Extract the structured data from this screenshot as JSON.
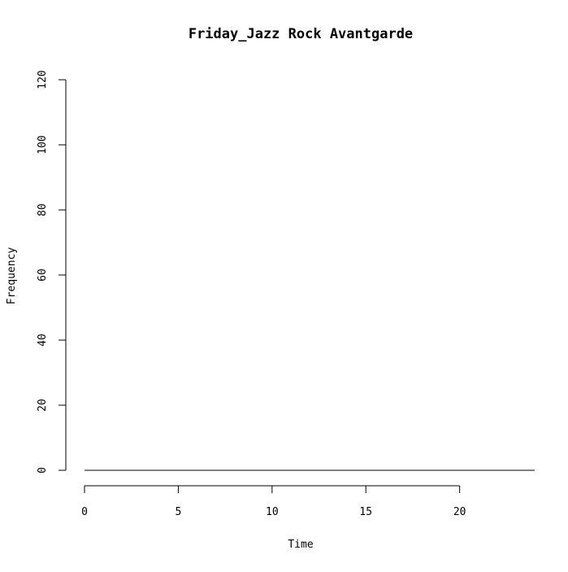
{
  "chart_data": {
    "type": "line",
    "title": "Friday_Jazz Rock Avantgarde",
    "xlabel": "Time",
    "ylabel": "Frequency",
    "xlim": [
      0,
      24
    ],
    "ylim": [
      0,
      120
    ],
    "x_ticks": [
      0,
      5,
      10,
      15,
      20
    ],
    "y_ticks": [
      0,
      20,
      40,
      60,
      80,
      100,
      120
    ],
    "grid": false,
    "legend": "none",
    "series": [
      {
        "x": [
          0,
          1,
          2,
          3,
          4,
          5,
          6,
          7,
          8,
          9,
          10,
          11,
          12,
          13,
          14,
          15,
          16,
          17,
          18,
          19,
          20,
          21,
          22,
          23,
          24
        ],
        "values": [
          0,
          0,
          0,
          0,
          0,
          0,
          0,
          0,
          0,
          0,
          0,
          0,
          0,
          0,
          0,
          0,
          0,
          0,
          0,
          0,
          0,
          0,
          0,
          0,
          0
        ],
        "color": "#000000"
      }
    ]
  }
}
